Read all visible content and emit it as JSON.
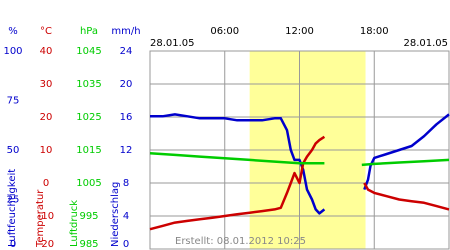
{
  "chart_data": {
    "type": "line",
    "xlim": [
      0,
      24
    ],
    "xticks": [
      {
        "value": 6,
        "label": "06:00"
      },
      {
        "value": 12,
        "label": "12:00"
      },
      {
        "value": 18,
        "label": "18:00"
      }
    ],
    "date_left": "28.01.05",
    "date_right": "28.01.05",
    "created": "Erstellt: 08.01.2012 10:25",
    "highlight_x": [
      8,
      17.3
    ],
    "grid": true,
    "axes": [
      {
        "unit": "%",
        "label": "Luftfeuchtigkeit",
        "color": "#0000cc",
        "ylim": [
          0,
          100
        ],
        "yticks": [
          0,
          25,
          50,
          75,
          100
        ]
      },
      {
        "unit": "°C",
        "label": "Temperatur",
        "color": "#cc0000",
        "ylim": [
          -20,
          40
        ],
        "yticks": [
          -20,
          -10,
          0,
          10,
          20,
          30,
          40
        ]
      },
      {
        "unit": "hPa",
        "label": "Luftdruck",
        "color": "#00cc00",
        "ylim": [
          985,
          1045
        ],
        "yticks": [
          985,
          995,
          1005,
          1015,
          1025,
          1035,
          1045
        ]
      },
      {
        "unit": "mm/h",
        "label": "Niederschlag",
        "color": "#0000cc",
        "ylim": [
          0,
          24
        ],
        "yticks": [
          0,
          4,
          8,
          12,
          16,
          20,
          24
        ]
      }
    ],
    "series": [
      {
        "name": "Luftfeuchtigkeit",
        "axis": 0,
        "color": "#0000cc",
        "x": [
          0,
          1,
          2,
          3,
          4,
          5,
          6,
          7,
          8,
          9,
          10,
          10.5,
          11,
          11.3,
          11.6,
          12,
          12.3,
          12.6,
          13,
          13.3,
          13.6,
          14,
          15,
          17.2,
          17.5,
          17.7,
          18,
          19,
          20,
          21,
          22,
          23,
          24
        ],
        "values": [
          67,
          67,
          68,
          67,
          66,
          66,
          66,
          65,
          65,
          65,
          66,
          66,
          60,
          50,
          45,
          45,
          40,
          30,
          25,
          20,
          18,
          20,
          null,
          30,
          35,
          42,
          46,
          48,
          50,
          52,
          57,
          63,
          68
        ]
      },
      {
        "name": "Temperatur",
        "axis": 1,
        "color": "#cc0000",
        "x": [
          0,
          1,
          2,
          3,
          4,
          5,
          6,
          7,
          8,
          9,
          10,
          10.5,
          11,
          11.3,
          11.6,
          12,
          12.3,
          12.6,
          13,
          13.3,
          13.6,
          14,
          15,
          17.2,
          17.5,
          18,
          19,
          20,
          21,
          22,
          23,
          24
        ],
        "values": [
          -14,
          -13,
          -12,
          -11.5,
          -11,
          -10.5,
          -10,
          -9.5,
          -9,
          -8.5,
          -8,
          -7.5,
          -3,
          0,
          3,
          0,
          6,
          8,
          10,
          12,
          13,
          14,
          null,
          0,
          -2,
          -3,
          -4,
          -5,
          -5.5,
          -6,
          -7,
          -8
        ]
      },
      {
        "name": "Luftdruck",
        "axis": 2,
        "color": "#00cc00",
        "x": [
          0,
          2,
          4,
          6,
          8,
          10,
          12,
          14,
          15,
          17,
          18,
          20,
          22,
          24
        ],
        "values": [
          1014,
          1013.5,
          1013,
          1012.5,
          1012,
          1011.5,
          1011,
          1011,
          null,
          1010.5,
          1010.8,
          1011.2,
          1011.6,
          1012
        ]
      }
    ]
  }
}
